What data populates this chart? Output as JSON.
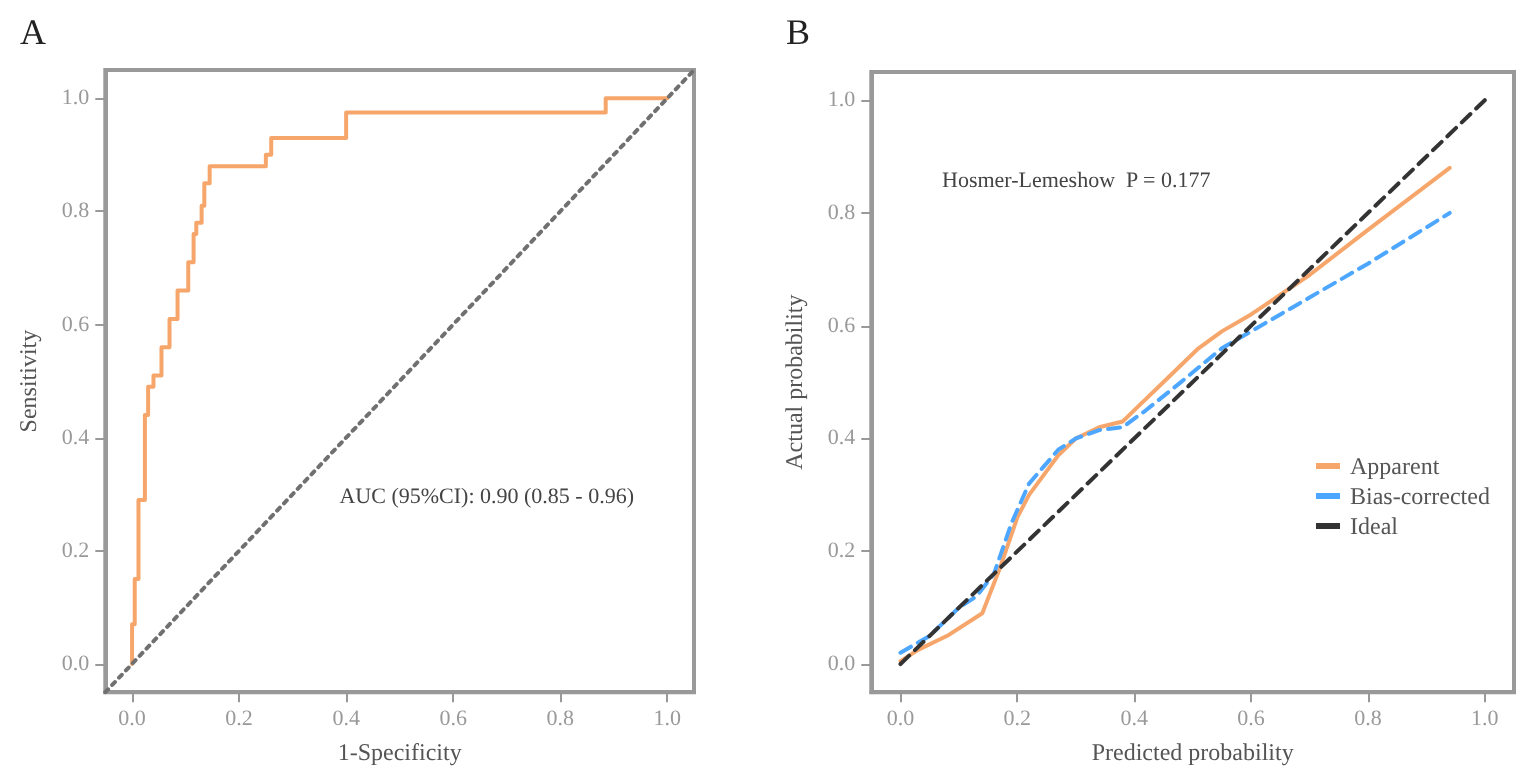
{
  "chart_data": [
    {
      "type": "step",
      "title": "A",
      "xlabel": "1-Specificity",
      "ylabel": "Sensitivity",
      "annotations": [
        "AUC (95%CI): 0.90 (0.85 - 0.96)"
      ],
      "xlim": [
        -0.05,
        1.05
      ],
      "ylim": [
        -0.05,
        1.05
      ],
      "xticks": [
        {
          "value": 0,
          "label": "0.0"
        },
        {
          "value": 0.2,
          "label": "0.2"
        },
        {
          "value": 0.4,
          "label": "0.4"
        },
        {
          "value": 0.6,
          "label": "0.6"
        },
        {
          "value": 0.8,
          "label": "0.8"
        },
        {
          "value": 1,
          "label": "1.0"
        }
      ],
      "yticks": [
        {
          "value": 0,
          "label": "0.0"
        },
        {
          "value": 0.2,
          "label": "0.2"
        },
        {
          "value": 0.4,
          "label": "0.4"
        },
        {
          "value": 0.6,
          "label": "0.6"
        },
        {
          "value": 0.8,
          "label": "0.8"
        },
        {
          "value": 1,
          "label": "1.0"
        }
      ],
      "grid": false,
      "legend": false,
      "marker": "none",
      "series": [
        {
          "color": "#f7a66b",
          "line_style": "solid",
          "x": [
            0,
            0,
            0.005,
            0.012,
            0.024,
            0.03,
            0.04,
            0.055,
            0.07,
            0.085,
            0.105,
            0.115,
            0.12,
            0.13,
            0.135,
            0.145,
            0.25,
            0.26,
            0.4,
            0.885,
            1.0
          ],
          "values": [
            0,
            0.07,
            0.15,
            0.29,
            0.44,
            0.49,
            0.51,
            0.56,
            0.61,
            0.66,
            0.71,
            0.76,
            0.78,
            0.81,
            0.85,
            0.88,
            0.9,
            0.93,
            0.975,
            1.0,
            1.0
          ]
        },
        {
          "type": "line",
          "color": "#707070",
          "line_style": "dotted",
          "x": [
            -0.05,
            1.05
          ],
          "values": [
            -0.05,
            1.05
          ]
        }
      ]
    },
    {
      "type": "line",
      "title": "B",
      "xlabel": "Predicted probability",
      "ylabel": "Actual probability",
      "annotations": [
        "Hosmer-Lemeshow  P = 0.177"
      ],
      "xlim": [
        -0.05,
        1.05
      ],
      "ylim": [
        -0.05,
        1.05
      ],
      "xticks": [
        {
          "value": 0,
          "label": "0.0"
        },
        {
          "value": 0.2,
          "label": "0.2"
        },
        {
          "value": 0.4,
          "label": "0.4"
        },
        {
          "value": 0.6,
          "label": "0.6"
        },
        {
          "value": 0.8,
          "label": "0.8"
        },
        {
          "value": 1,
          "label": "1.0"
        }
      ],
      "yticks": [
        {
          "value": 0,
          "label": "0.0"
        },
        {
          "value": 0.2,
          "label": "0.2"
        },
        {
          "value": 0.4,
          "label": "0.4"
        },
        {
          "value": 0.6,
          "label": "0.6"
        },
        {
          "value": 0.8,
          "label": "0.8"
        },
        {
          "value": 1,
          "label": "1.0"
        }
      ],
      "grid": false,
      "legend": "bottom right",
      "marker": "none",
      "series": [
        {
          "name": "Apparent",
          "color": "#f7a66b",
          "line_style": "solid",
          "x": [
            0,
            0.03,
            0.08,
            0.14,
            0.17,
            0.2,
            0.22,
            0.27,
            0.3,
            0.34,
            0.38,
            0.41,
            0.46,
            0.51,
            0.55,
            0.6,
            0.7,
            0.8,
            0.94
          ],
          "values": [
            0.005,
            0.025,
            0.05,
            0.09,
            0.17,
            0.26,
            0.3,
            0.37,
            0.4,
            0.42,
            0.43,
            0.46,
            0.51,
            0.56,
            0.59,
            0.62,
            0.69,
            0.77,
            0.88
          ]
        },
        {
          "name": "Bias-corrected",
          "color": "#4da6ff",
          "line_style": "dashed",
          "x": [
            0,
            0.05,
            0.1,
            0.13,
            0.16,
            0.19,
            0.22,
            0.27,
            0.3,
            0.34,
            0.38,
            0.42,
            0.48,
            0.55,
            0.6,
            0.7,
            0.8,
            0.94
          ],
          "values": [
            0.02,
            0.05,
            0.1,
            0.12,
            0.16,
            0.25,
            0.32,
            0.38,
            0.4,
            0.415,
            0.42,
            0.45,
            0.5,
            0.56,
            0.59,
            0.65,
            0.71,
            0.8
          ]
        },
        {
          "name": "Ideal",
          "color": "#333333",
          "line_style": "dashed",
          "x": [
            0,
            1
          ],
          "values": [
            0,
            1
          ]
        }
      ]
    }
  ]
}
